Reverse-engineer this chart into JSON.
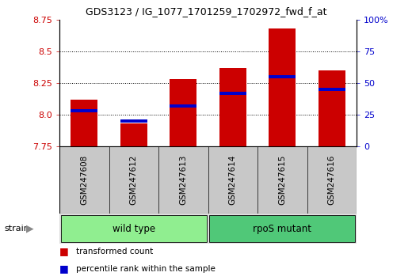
{
  "title": "GDS3123 / IG_1077_1701259_1702972_fwd_f_at",
  "samples": [
    "GSM247608",
    "GSM247612",
    "GSM247613",
    "GSM247614",
    "GSM247615",
    "GSM247616"
  ],
  "red_values": [
    8.12,
    7.93,
    8.28,
    8.37,
    8.68,
    8.35
  ],
  "blue_percentiles": [
    28,
    20,
    32,
    42,
    55,
    45
  ],
  "ylim_left": [
    7.75,
    8.75
  ],
  "ylim_right": [
    0,
    100
  ],
  "yticks_left": [
    7.75,
    8.0,
    8.25,
    8.5,
    8.75
  ],
  "yticks_right": [
    0,
    25,
    50,
    75,
    100
  ],
  "ytick_labels_right": [
    "0",
    "25",
    "50",
    "75",
    "100%"
  ],
  "grid_yticks": [
    8.0,
    8.25,
    8.5
  ],
  "groups": [
    {
      "label": "wild type",
      "indices": [
        0,
        1,
        2
      ],
      "color": "#90EE90"
    },
    {
      "label": "rpoS mutant",
      "indices": [
        3,
        4,
        5
      ],
      "color": "#50C878"
    }
  ],
  "group_label": "strain",
  "bar_width": 0.55,
  "red_color": "#CC0000",
  "blue_color": "#0000CC",
  "bg_plot": "#FFFFFF",
  "bg_xtick": "#C8C8C8",
  "legend_items": [
    {
      "color": "#CC0000",
      "label": "transformed count"
    },
    {
      "color": "#0000CC",
      "label": "percentile rank within the sample"
    }
  ]
}
